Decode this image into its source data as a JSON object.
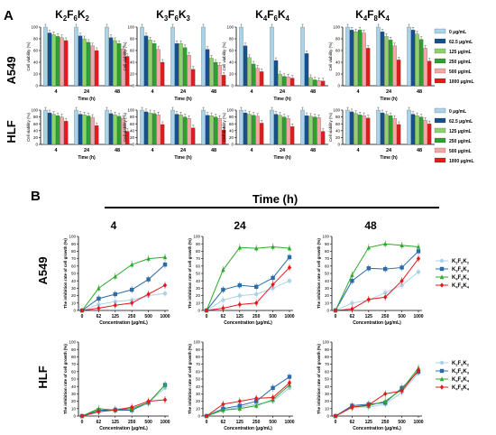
{
  "figure": {
    "panel_a_label": "A",
    "panel_b_label": "B",
    "row_labels": [
      "A549",
      "HLF"
    ],
    "compound_titles": [
      {
        "base": "K",
        "s1": "2",
        "mid": "F",
        "s2": "6",
        "end": "K",
        "s3": "2"
      },
      {
        "base": "K",
        "s1": "3",
        "mid": "F",
        "s2": "6",
        "end": "K",
        "s3": "3"
      },
      {
        "base": "K",
        "s1": "4",
        "mid": "F",
        "s2": "6",
        "end": "K",
        "s3": "4"
      },
      {
        "base": "K",
        "s1": "4",
        "mid": "F",
        "s2": "8",
        "end": "K",
        "s3": "4"
      }
    ],
    "time_header": "Time (h)",
    "time_columns": [
      "4",
      "24",
      "48"
    ]
  },
  "colors": {
    "c0": "#a9d3e8",
    "c62": "#16508d",
    "c125": "#8ed36a",
    "c250": "#2f9f2f",
    "c500": "#f2a7a7",
    "c1000": "#e3191c",
    "k2f6k2": "#a9d3e8",
    "k3f6k3": "#2b6ca8",
    "k4f6k4": "#2ea82e",
    "k4f8k4": "#e3191c"
  },
  "chart_data": [
    {
      "type": "bar",
      "panel": "A",
      "categories": [
        "4",
        "24",
        "48"
      ],
      "xlabel": "Time (h)",
      "ylabel": "Cell viability (%)",
      "ylim": [
        0,
        100
      ],
      "yticks": [
        "0",
        "20",
        "40",
        "60",
        "80",
        "100"
      ],
      "legend_position": "right",
      "legend": [
        "0 μg/mL",
        "62.5 μg/mL",
        "125 μg/mL",
        "250 μg/mL",
        "500 μg/mL",
        "1000 μg/mL"
      ],
      "subplots": [
        {
          "row": "A549",
          "compound": 0,
          "series": [
            [
              100,
              90,
              87,
              84,
              82,
              77
            ],
            [
              100,
              85,
              80,
              74,
              68,
              60
            ],
            [
              100,
              82,
              77,
              72,
              63,
              50
            ]
          ]
        },
        {
          "row": "A549",
          "compound": 1,
          "series": [
            [
              100,
              85,
              78,
              72,
              62,
              40
            ],
            [
              100,
              72,
              72,
              65,
              52,
              28
            ],
            [
              100,
              62,
              47,
              40,
              35,
              18
            ]
          ]
        },
        {
          "row": "A549",
          "compound": 2,
          "series": [
            [
              100,
              68,
              48,
              37,
              30,
              24
            ],
            [
              100,
              43,
              20,
              16,
              15,
              13
            ],
            [
              100,
              55,
              14,
              10,
              9,
              8
            ]
          ]
        },
        {
          "row": "A549",
          "compound": 3,
          "series": [
            [
              100,
              95,
              92,
              95,
              90,
              64
            ],
            [
              100,
              92,
              84,
              78,
              68,
              44
            ],
            [
              100,
              95,
              88,
              79,
              64,
              42
            ]
          ]
        },
        {
          "row": "HLF",
          "compound": 0,
          "series": [
            [
              100,
              92,
              88,
              84,
              80,
              68
            ],
            [
              100,
              88,
              86,
              83,
              79,
              55
            ],
            [
              100,
              90,
              86,
              82,
              76,
              38
            ]
          ]
        },
        {
          "row": "HLF",
          "compound": 1,
          "series": [
            [
              100,
              95,
              92,
              90,
              86,
              58
            ],
            [
              100,
              88,
              86,
              80,
              76,
              48
            ],
            [
              100,
              85,
              84,
              80,
              76,
              42
            ]
          ]
        },
        {
          "row": "HLF",
          "compound": 2,
          "series": [
            [
              100,
              92,
              88,
              85,
              82,
              62
            ],
            [
              100,
              88,
              85,
              80,
              76,
              52
            ],
            [
              100,
              84,
              82,
              80,
              78,
              38
            ]
          ]
        },
        {
          "row": "HLF",
          "compound": 3,
          "series": [
            [
              100,
              95,
              90,
              86,
              84,
              77
            ],
            [
              100,
              92,
              88,
              84,
              76,
              58
            ],
            [
              100,
              88,
              84,
              80,
              70,
              60
            ]
          ]
        }
      ]
    },
    {
      "type": "line",
      "panel": "B",
      "x": [
        "0",
        "62",
        "125",
        "250",
        "500",
        "1000"
      ],
      "xlabel": "Concentration (μg/mL)",
      "ylabel": "The inhibition rate of cell growth (%)",
      "ylim": [
        0,
        100
      ],
      "yticks": [
        "0",
        "10",
        "20",
        "30",
        "40",
        "50",
        "60",
        "70",
        "80",
        "90",
        "100"
      ],
      "legend_position": "right",
      "legend": [
        {
          "base": "K",
          "s1": "2",
          "mid": "F",
          "s2": "6",
          "end": "K",
          "s3": "2"
        },
        {
          "base": "K",
          "s1": "3",
          "mid": "F",
          "s2": "6",
          "end": "K",
          "s3": "3"
        },
        {
          "base": "K",
          "s1": "4",
          "mid": "F",
          "s2": "6",
          "end": "K",
          "s3": "4"
        },
        {
          "base": "K",
          "s1": "4",
          "mid": "F",
          "s2": "8",
          "end": "K",
          "s3": "4"
        }
      ],
      "subplots": [
        {
          "row": "A549",
          "time": "4",
          "series": [
            [
              0,
              8,
              12,
              14,
              20,
              23
            ],
            [
              0,
              16,
              22,
              28,
              42,
              62
            ],
            [
              0,
              30,
              46,
              62,
              70,
              72
            ],
            [
              0,
              3,
              7,
              10,
              22,
              34
            ]
          ]
        },
        {
          "row": "A549",
          "time": "24",
          "series": [
            [
              0,
              14,
              20,
              22,
              30,
              40
            ],
            [
              0,
              28,
              34,
              32,
              44,
              72
            ],
            [
              0,
              55,
              85,
              84,
              86,
              84
            ],
            [
              0,
              3,
              8,
              10,
              35,
              58
            ]
          ]
        },
        {
          "row": "A549",
          "time": "48",
          "series": [
            [
              0,
              10,
              14,
              24,
              34,
              52
            ],
            [
              0,
              40,
              57,
              56,
              58,
              80
            ],
            [
              0,
              48,
              85,
              90,
              88,
              86
            ],
            [
              0,
              2,
              15,
              18,
              40,
              70
            ]
          ]
        },
        {
          "row": "HLF",
          "time": "4",
          "series": [
            [
              0,
              5,
              10,
              10,
              18,
              38
            ],
            [
              0,
              8,
              8,
              8,
              18,
              42
            ],
            [
              0,
              10,
              8,
              10,
              18,
              42
            ],
            [
              0,
              6,
              8,
              12,
              20,
              22
            ]
          ]
        },
        {
          "row": "HLF",
          "time": "24",
          "series": [
            [
              0,
              8,
              12,
              16,
              20,
              38
            ],
            [
              0,
              10,
              14,
              20,
              38,
              53
            ],
            [
              0,
              8,
              10,
              14,
              22,
              42
            ],
            [
              0,
              16,
              20,
              24,
              25,
              45
            ]
          ]
        },
        {
          "row": "HLF",
          "time": "48",
          "series": [
            [
              0,
              12,
              12,
              16,
              32,
              58
            ],
            [
              0,
              14,
              16,
              18,
              38,
              60
            ],
            [
              0,
              12,
              14,
              20,
              36,
              65
            ],
            [
              0,
              12,
              15,
              30,
              34,
              62
            ]
          ]
        }
      ]
    }
  ]
}
